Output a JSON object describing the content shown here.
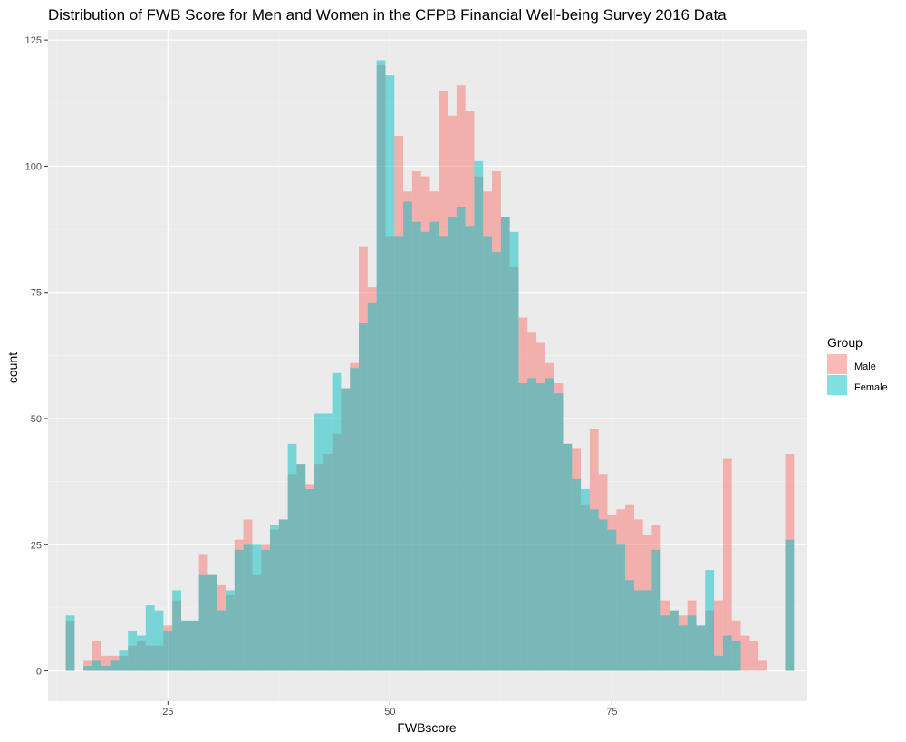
{
  "chart_data": {
    "type": "bar",
    "title": "Distribution of FWB Score for Men and Women in the CFPB Financial Well-being Survey 2016 Data",
    "xlabel": "FWBscore",
    "ylabel": "count",
    "xlim": [
      11.5,
      97
    ],
    "ylim": [
      -6,
      127
    ],
    "x_ticks": [
      25,
      50,
      75
    ],
    "y_ticks": [
      0,
      25,
      50,
      75,
      100,
      125
    ],
    "grid": true,
    "legend": {
      "title": "Group",
      "position": "right"
    },
    "bin_width": 1,
    "x": [
      14,
      15,
      16,
      17,
      18,
      19,
      20,
      21,
      22,
      23,
      24,
      25,
      26,
      27,
      28,
      29,
      30,
      31,
      32,
      33,
      34,
      35,
      36,
      37,
      38,
      39,
      40,
      41,
      42,
      43,
      44,
      45,
      46,
      47,
      48,
      49,
      50,
      51,
      52,
      53,
      54,
      55,
      56,
      57,
      58,
      59,
      60,
      61,
      62,
      63,
      64,
      65,
      66,
      67,
      68,
      69,
      70,
      71,
      72,
      73,
      74,
      75,
      76,
      77,
      78,
      79,
      80,
      81,
      82,
      83,
      84,
      85,
      86,
      87,
      88,
      89,
      90,
      91,
      92,
      93,
      94,
      95
    ],
    "series": [
      {
        "name": "Male",
        "color": "#F8766D",
        "values": [
          10,
          0,
          2,
          6,
          3,
          3,
          3,
          5,
          6,
          5,
          5,
          9,
          14,
          10,
          10,
          23,
          19,
          17,
          15,
          26,
          30,
          19,
          25,
          28,
          30,
          39,
          41,
          37,
          41,
          43,
          47,
          56,
          61,
          84,
          76,
          120,
          86,
          106,
          95,
          99,
          98,
          95,
          115,
          110,
          116,
          111,
          98,
          95,
          99,
          90,
          80,
          70,
          67,
          65,
          61,
          57,
          45,
          44,
          33,
          48,
          39,
          31,
          32,
          33,
          30,
          27,
          29,
          14,
          12,
          11,
          14,
          9,
          12,
          14,
          42,
          10,
          7,
          6,
          2,
          0,
          0,
          43
        ]
      },
      {
        "name": "Female",
        "color": "#00BFC4",
        "values": [
          11,
          0,
          1,
          2,
          1,
          2,
          4,
          8,
          7,
          13,
          12,
          8,
          16,
          10,
          10,
          19,
          19,
          12,
          16,
          24,
          25,
          25,
          24,
          29,
          30,
          45,
          41,
          36,
          51,
          51,
          59,
          56,
          60,
          69,
          73,
          121,
          118,
          86,
          93,
          89,
          87,
          89,
          86,
          90,
          92,
          88,
          101,
          86,
          83,
          90,
          87,
          57,
          58,
          57,
          58,
          55,
          45,
          38,
          36,
          32,
          30,
          28,
          25,
          18,
          16,
          16,
          24,
          11,
          12,
          9,
          11,
          9,
          20,
          3,
          7,
          6,
          0,
          0,
          0,
          0,
          0,
          26
        ]
      }
    ]
  },
  "colors": {
    "panel_bg": "#EBEBEB",
    "grid_major": "#FFFFFF",
    "grid_minor": "#F2F2F2"
  }
}
